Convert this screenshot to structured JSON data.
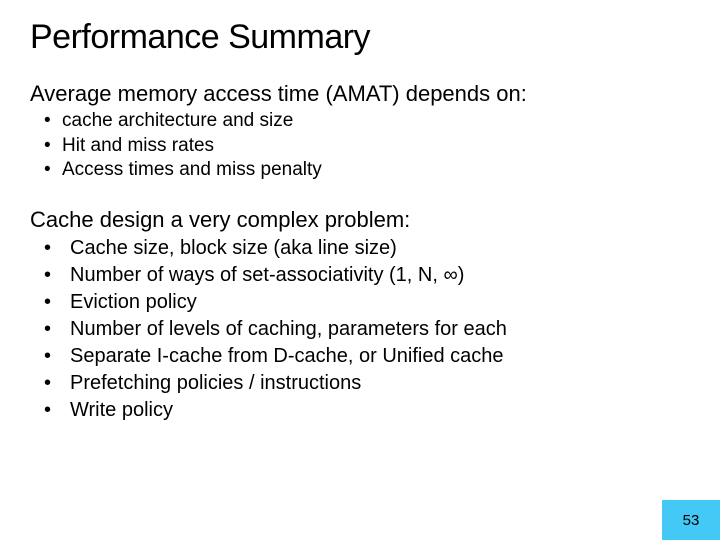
{
  "title": "Performance Summary",
  "section1": {
    "heading": "Average memory access time (AMAT) depends on:",
    "items": [
      "cache architecture and size",
      "Hit and miss rates",
      "Access times and miss penalty"
    ]
  },
  "section2": {
    "heading": "Cache design a very complex problem:",
    "items": [
      "Cache size, block size (aka line size)",
      "Number of ways of set-associativity (1, N, ∞)",
      "Eviction policy",
      "Number of levels of caching, parameters for each",
      "Separate I-cache from D-cache, or Unified cache",
      "Prefetching policies / instructions",
      "Write policy"
    ]
  },
  "page_number": "53",
  "colors": {
    "background": "#ffffff",
    "text": "#000000",
    "pagenum_bg": "#44c8f5"
  },
  "typography": {
    "title_fontsize": 34,
    "heading_fontsize": 22,
    "body_fontsize": 19,
    "font_family": "Arial"
  }
}
